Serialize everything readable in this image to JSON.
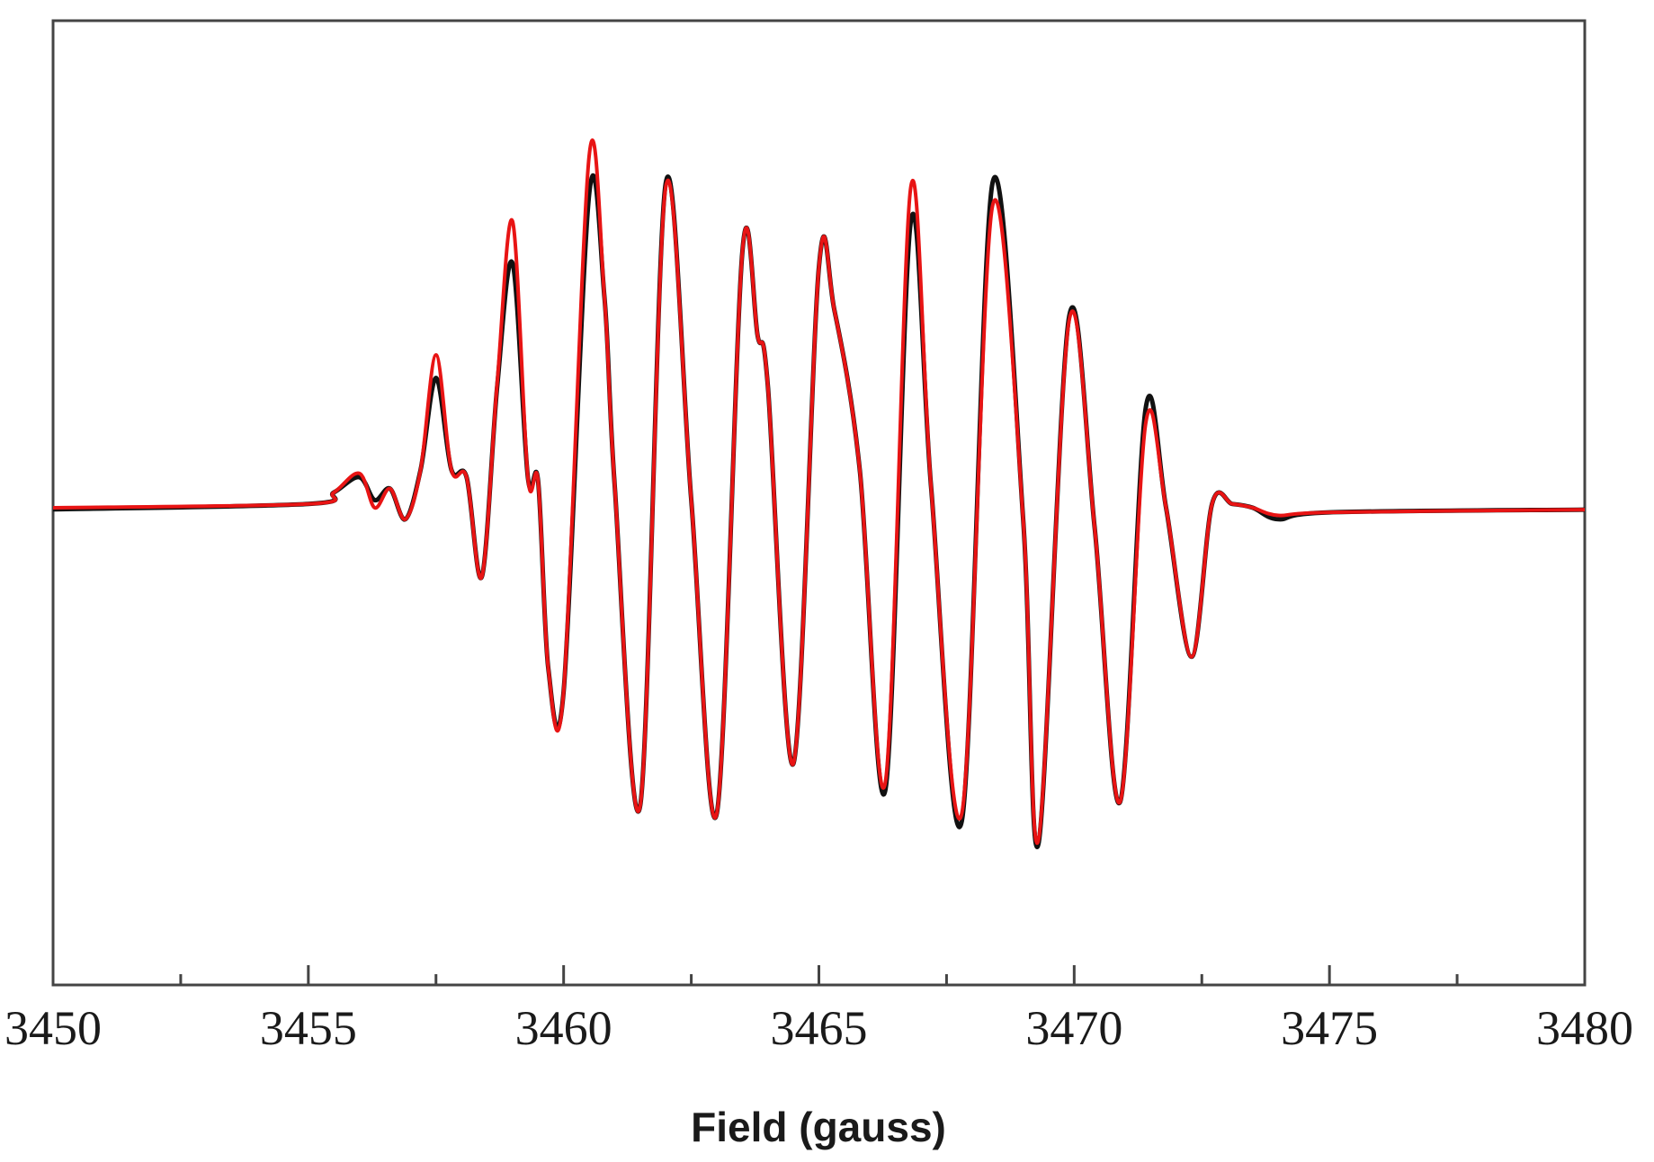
{
  "chart_data": {
    "type": "line",
    "title": "",
    "xlabel": "Field (gauss)",
    "ylabel": "",
    "xlim": [
      3450,
      3480
    ],
    "ylim": [
      -1.0,
      1.0
    ],
    "y_axis_visible": false,
    "grid": false,
    "legend": "none",
    "x_ticks": [
      {
        "value": 3450,
        "label": "3450"
      },
      {
        "value": 3455,
        "label": "3455"
      },
      {
        "value": 3460,
        "label": "3460"
      },
      {
        "value": 3465,
        "label": "3465"
      },
      {
        "value": 3470,
        "label": "3470"
      },
      {
        "value": 3475,
        "label": "3475"
      },
      {
        "value": 3480,
        "label": "3480"
      }
    ],
    "x_minor_ticks": [
      3452.5,
      3457.5,
      3462.5,
      3467.5,
      3472.5,
      3477.5
    ],
    "series": [
      {
        "color": "#111111",
        "style": "experimental (noisy)",
        "x": [
          3450,
          3455,
          3455.5,
          3456,
          3456.3,
          3456.6,
          3456.9,
          3457.2,
          3457.5,
          3457.8,
          3458.1,
          3458.4,
          3458.7,
          3459.0,
          3459.3,
          3459.5,
          3459.7,
          3460.0,
          3460.5,
          3460.8,
          3461.0,
          3461.5,
          3462.0,
          3462.5,
          3463.0,
          3463.5,
          3463.8,
          3464.0,
          3464.5,
          3465.0,
          3465.3,
          3465.8,
          3466.3,
          3466.8,
          3467.2,
          3467.8,
          3468.4,
          3469.0,
          3469.3,
          3469.9,
          3470.4,
          3470.9,
          3471.4,
          3471.8,
          3472.3,
          3472.7,
          3473.1,
          3473.5,
          3474.0,
          3475,
          3480
        ],
        "y": [
          -0.004,
          0.01,
          0.04,
          0.08,
          0.02,
          0.05,
          -0.03,
          0.1,
          0.34,
          0.1,
          0.08,
          -0.18,
          0.32,
          0.64,
          0.08,
          0.07,
          -0.42,
          -0.48,
          0.82,
          0.55,
          0.06,
          -0.78,
          0.85,
          0.02,
          -0.8,
          0.67,
          0.45,
          0.32,
          -0.67,
          0.63,
          0.52,
          0.1,
          -0.74,
          0.75,
          0.05,
          -0.82,
          0.85,
          -0.03,
          -0.88,
          0.5,
          -0.05,
          -0.77,
          0.26,
          0.0,
          -0.39,
          0.01,
          0.01,
          0.0,
          -0.03,
          -0.012,
          -0.005
        ]
      },
      {
        "color": "#e81414",
        "style": "simulated (smooth)",
        "x": [
          3450,
          3455,
          3455.5,
          3456,
          3456.3,
          3456.6,
          3456.9,
          3457.2,
          3457.5,
          3457.8,
          3458.1,
          3458.4,
          3458.7,
          3459.0,
          3459.3,
          3459.5,
          3459.7,
          3460.0,
          3460.5,
          3460.8,
          3461.0,
          3461.5,
          3462.0,
          3462.5,
          3463.0,
          3463.5,
          3463.8,
          3464.0,
          3464.5,
          3465.0,
          3465.3,
          3465.8,
          3466.3,
          3466.8,
          3467.2,
          3467.8,
          3468.4,
          3469.0,
          3469.3,
          3469.9,
          3470.4,
          3470.9,
          3471.4,
          3471.8,
          3472.3,
          3472.7,
          3473.1,
          3473.5,
          3474.0,
          3475,
          3480
        ],
        "y": [
          0.0,
          0.01,
          0.04,
          0.09,
          0.0,
          0.05,
          -0.03,
          0.1,
          0.4,
          0.1,
          0.08,
          -0.18,
          0.33,
          0.75,
          0.08,
          0.07,
          -0.42,
          -0.48,
          0.92,
          0.55,
          0.06,
          -0.78,
          0.84,
          0.02,
          -0.8,
          0.67,
          0.45,
          0.32,
          -0.67,
          0.63,
          0.52,
          0.1,
          -0.72,
          0.84,
          0.05,
          -0.8,
          0.79,
          -0.03,
          -0.87,
          0.49,
          -0.05,
          -0.77,
          0.22,
          0.0,
          -0.39,
          0.01,
          0.01,
          0.0,
          -0.02,
          -0.012,
          -0.005
        ]
      }
    ]
  }
}
